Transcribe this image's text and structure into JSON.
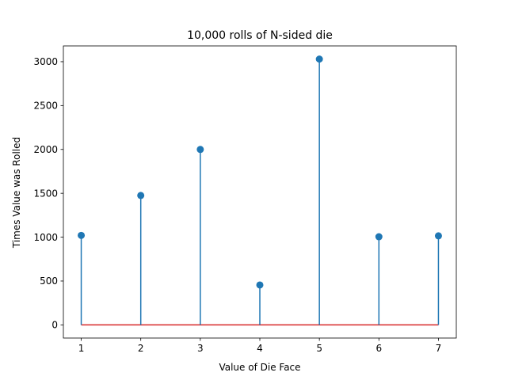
{
  "chart_data": {
    "type": "stem",
    "title": "10,000 rolls of N-sided die",
    "xlabel": "Value of Die Face",
    "ylabel": "Times Value was Rolled",
    "x": [
      1,
      2,
      3,
      4,
      5,
      6,
      7
    ],
    "values": [
      1020,
      1475,
      2000,
      455,
      3030,
      1005,
      1015
    ],
    "xlim": [
      0.7,
      7.3
    ],
    "ylim": [
      -150,
      3180
    ],
    "xticks": [
      "1",
      "2",
      "3",
      "4",
      "5",
      "6",
      "7"
    ],
    "yticks": [
      "0",
      "500",
      "1000",
      "1500",
      "2000",
      "2500",
      "3000"
    ],
    "grid": false,
    "colors": {
      "stem": "#1f77b4",
      "baseline": "#d62728"
    }
  }
}
